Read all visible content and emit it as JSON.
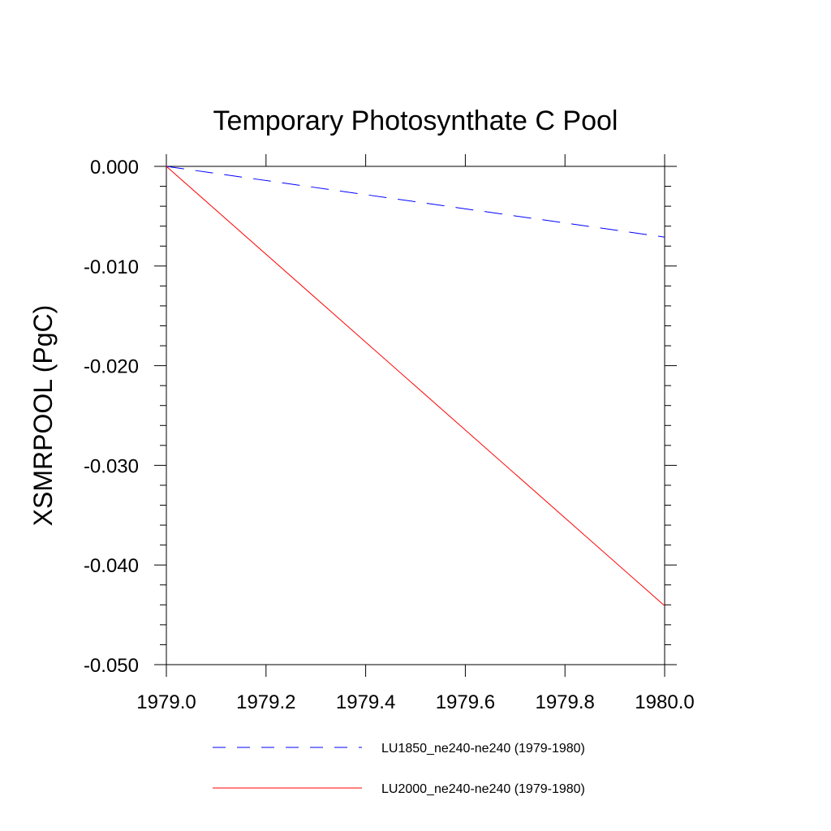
{
  "chart_data": {
    "type": "line",
    "title": "Temporary Photosynthate C Pool",
    "xlabel": "",
    "ylabel": "XSMRPOOL  (PgC)",
    "xlim": [
      1979.0,
      1980.0
    ],
    "ylim": [
      -0.05,
      0.0
    ],
    "x_ticks": [
      "1979.0",
      "1979.2",
      "1979.4",
      "1979.6",
      "1979.8",
      "1980.0"
    ],
    "y_ticks": [
      "0.000",
      "-0.010",
      "-0.020",
      "-0.030",
      "-0.040",
      "-0.050"
    ],
    "grid": false,
    "legend_position": "bottom",
    "series": [
      {
        "name": "LU1850_ne240-ne240 (1979-1980)",
        "color": "#0000ff",
        "dash": "dashed",
        "x": [
          1979.0,
          1980.0
        ],
        "y": [
          0.0,
          -0.0071
        ]
      },
      {
        "name": "LU2000_ne240-ne240 (1979-1980)",
        "color": "#ff0000",
        "dash": "solid",
        "x": [
          1979.0,
          1980.0
        ],
        "y": [
          0.0,
          -0.0441
        ]
      }
    ]
  }
}
